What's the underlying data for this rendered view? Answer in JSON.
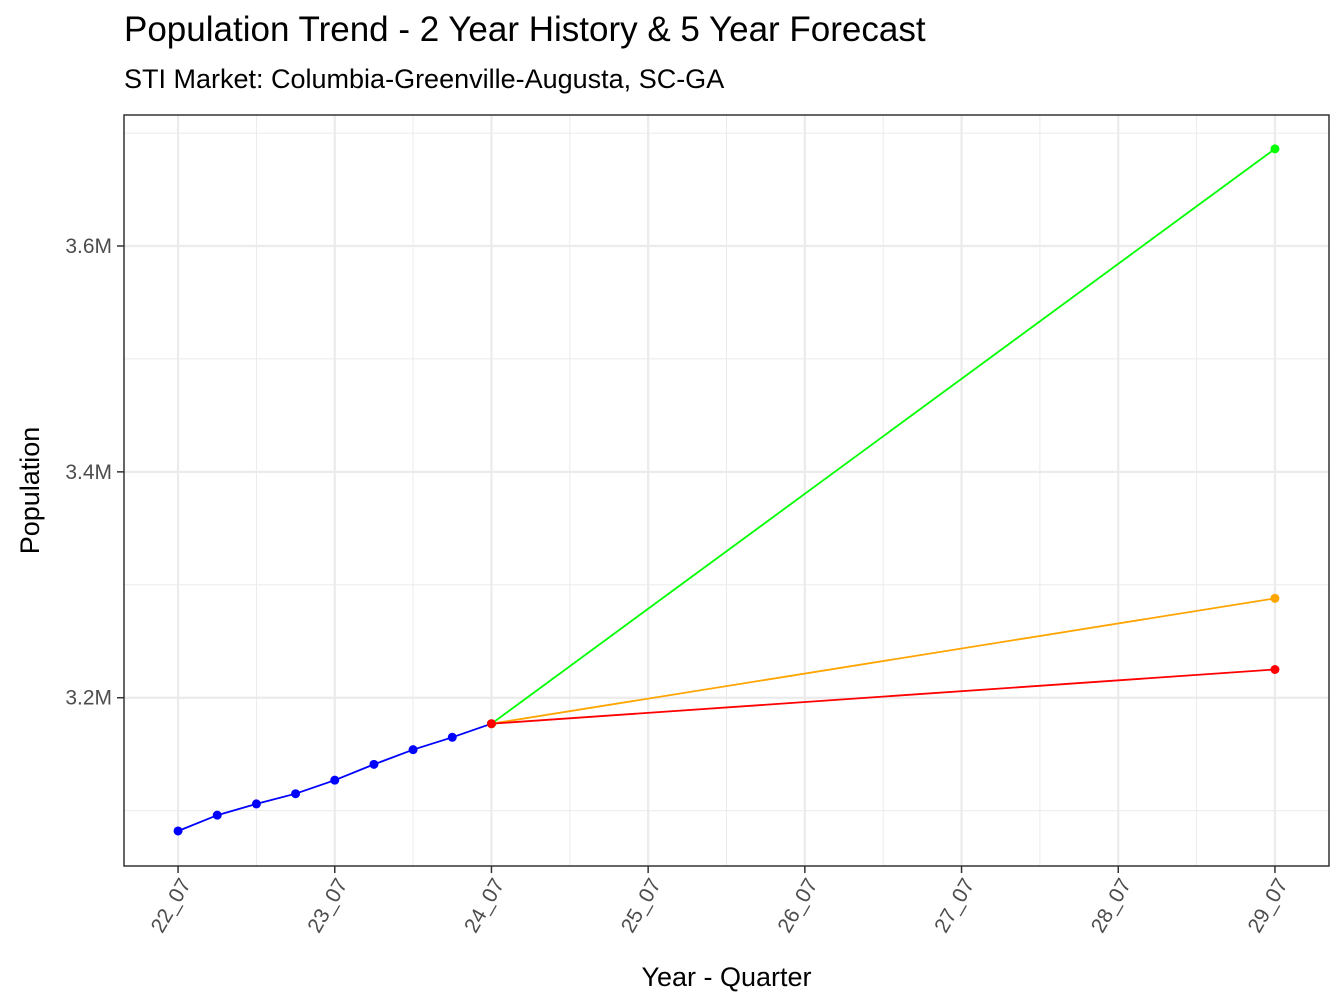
{
  "title": "Population Trend - 2 Year History & 5 Year Forecast",
  "subtitle": "STI Market: Columbia-Greenville-Augusta, SC-GA",
  "chart_data": {
    "type": "line",
    "title": "Population Trend - 2 Year History & 5 Year Forecast",
    "subtitle": "STI Market: Columbia-Greenville-Augusta, SC-GA",
    "xlabel": "Year - Quarter",
    "ylabel": "Population",
    "x_tick_labels": [
      "22_07",
      "23_07",
      "24_07",
      "25_07",
      "26_07",
      "27_07",
      "28_07",
      "29_07"
    ],
    "x_range": [
      21.655,
      29.345
    ],
    "y_tick_labels": [
      "3.2M",
      "3.4M",
      "3.6M"
    ],
    "y_ticks": [
      3200000,
      3400000,
      3600000
    ],
    "y_range": [
      3051000,
      3716000
    ],
    "grid": true,
    "legend": "none",
    "series": [
      {
        "color": "#0000ff",
        "points": [
          {
            "x": 22.0,
            "y": 3082000
          },
          {
            "x": 22.25,
            "y": 3096000
          },
          {
            "x": 22.5,
            "y": 3106000
          },
          {
            "x": 22.75,
            "y": 3115000
          },
          {
            "x": 23.0,
            "y": 3127000
          },
          {
            "x": 23.25,
            "y": 3141000
          },
          {
            "x": 23.5,
            "y": 3154000
          },
          {
            "x": 23.75,
            "y": 3165000
          },
          {
            "x": 24.0,
            "y": 3177000
          }
        ]
      },
      {
        "color": "#00ff00",
        "points": [
          {
            "x": 24.0,
            "y": 3177000
          },
          {
            "x": 29.0,
            "y": 3686000
          }
        ]
      },
      {
        "color": "#ffa500",
        "points": [
          {
            "x": 24.0,
            "y": 3177000
          },
          {
            "x": 29.0,
            "y": 3288000
          }
        ]
      },
      {
        "color": "#ff0000",
        "points": [
          {
            "x": 24.0,
            "y": 3177000
          },
          {
            "x": 29.0,
            "y": 3225000
          }
        ]
      }
    ]
  }
}
